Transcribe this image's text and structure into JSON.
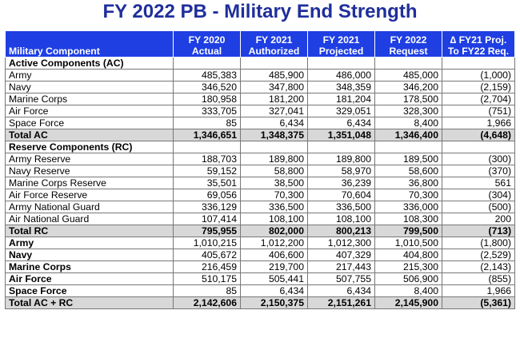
{
  "title": "FY 2022 PB - Military End Strength",
  "headers": {
    "component": "Military Component",
    "c1": [
      "FY 2020",
      "Actual"
    ],
    "c2": [
      "FY 2021",
      "Authorized"
    ],
    "c3": [
      "FY 2021",
      "Projected"
    ],
    "c4": [
      "FY 2022",
      "Request"
    ],
    "c5": [
      "∆ FY21 Proj.",
      "To FY22 Req."
    ]
  },
  "rows": [
    {
      "kind": "section",
      "name": "Active Components (AC)"
    },
    {
      "kind": "data",
      "name": "Army",
      "v": [
        "485,383",
        "485,900",
        "486,000",
        "485,000",
        "(1,000)"
      ]
    },
    {
      "kind": "data",
      "name": "Navy",
      "v": [
        "346,520",
        "347,800",
        "348,359",
        "346,200",
        "(2,159)"
      ]
    },
    {
      "kind": "data",
      "name": "Marine Corps",
      "v": [
        "180,958",
        "181,200",
        "181,204",
        "178,500",
        "(2,704)"
      ]
    },
    {
      "kind": "data",
      "name": "Air Force",
      "v": [
        "333,705",
        "327,041",
        "329,051",
        "328,300",
        "(751)"
      ]
    },
    {
      "kind": "data",
      "name": "Space Force",
      "v": [
        "85",
        "6,434",
        "6,434",
        "8,400",
        "1,966"
      ]
    },
    {
      "kind": "total",
      "name": "Total AC",
      "v": [
        "1,346,651",
        "1,348,375",
        "1,351,048",
        "1,346,400",
        "(4,648)"
      ]
    },
    {
      "kind": "section",
      "name": "Reserve Components (RC)"
    },
    {
      "kind": "data",
      "name": "Army Reserve",
      "v": [
        "188,703",
        "189,800",
        "189,800",
        "189,500",
        "(300)"
      ]
    },
    {
      "kind": "data",
      "name": "Navy Reserve",
      "v": [
        "59,152",
        "58,800",
        "58,970",
        "58,600",
        "(370)"
      ]
    },
    {
      "kind": "data",
      "name": "Marine Corps Reserve",
      "v": [
        "35,501",
        "38,500",
        "36,239",
        "36,800",
        "561"
      ]
    },
    {
      "kind": "data",
      "name": "Air Force Reserve",
      "v": [
        "69,056",
        "70,300",
        "70,604",
        "70,300",
        "(304)"
      ]
    },
    {
      "kind": "data",
      "name": "Army National Guard",
      "v": [
        "336,129",
        "336,500",
        "336,500",
        "336,000",
        "(500)"
      ]
    },
    {
      "kind": "data",
      "name": "Air National Guard",
      "v": [
        "107,414",
        "108,100",
        "108,100",
        "108,300",
        "200"
      ]
    },
    {
      "kind": "total",
      "name": "Total RC",
      "v": [
        "795,955",
        "802,000",
        "800,213",
        "799,500",
        "(713)"
      ]
    },
    {
      "kind": "bold",
      "name": "Army",
      "v": [
        "1,010,215",
        "1,012,200",
        "1,012,300",
        "1,010,500",
        "(1,800)"
      ]
    },
    {
      "kind": "bold",
      "name": "Navy",
      "v": [
        "405,672",
        "406,600",
        "407,329",
        "404,800",
        "(2,529)"
      ]
    },
    {
      "kind": "bold",
      "name": "Marine Corps",
      "v": [
        "216,459",
        "219,700",
        "217,443",
        "215,300",
        "(2,143)"
      ]
    },
    {
      "kind": "bold",
      "name": "Air Force",
      "v": [
        "510,175",
        "505,441",
        "507,755",
        "506,900",
        "(855)"
      ]
    },
    {
      "kind": "bold",
      "name": "Space Force",
      "v": [
        "85",
        "6,434",
        "6,434",
        "8,400",
        "1,966"
      ]
    },
    {
      "kind": "total",
      "name": "Total AC + RC",
      "v": [
        "2,142,606",
        "2,150,375",
        "2,151,261",
        "2,145,900",
        "(5,361)"
      ]
    }
  ]
}
